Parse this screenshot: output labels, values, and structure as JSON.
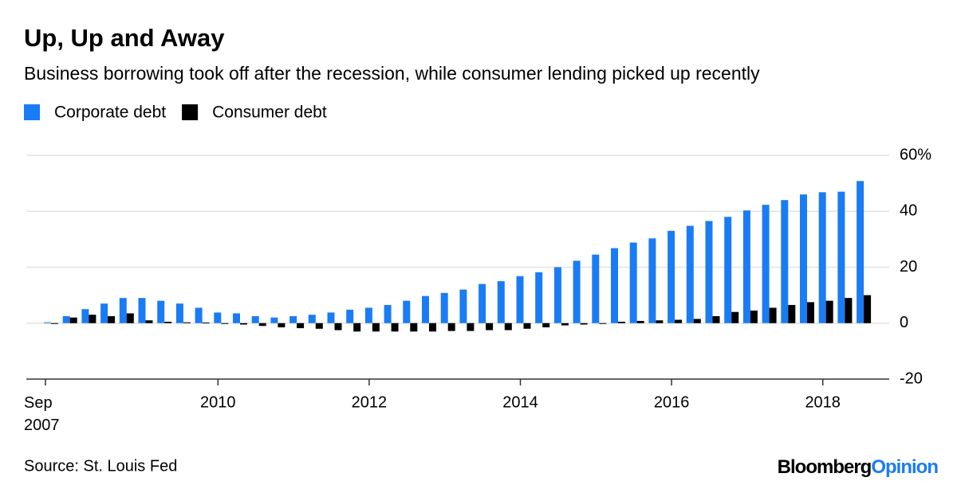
{
  "chart_data": {
    "type": "bar",
    "title": "Up, Up and Away",
    "subtitle": "Business borrowing took off after the recession, while consumer lending picked up recently",
    "categories": [
      "Sep 2007",
      null,
      null,
      null,
      null,
      null,
      null,
      null,
      null,
      "2010",
      null,
      null,
      null,
      null,
      null,
      null,
      null,
      "2012",
      null,
      null,
      null,
      null,
      null,
      null,
      null,
      "2014",
      null,
      null,
      null,
      null,
      null,
      null,
      null,
      "2016",
      null,
      null,
      null,
      null,
      null,
      null,
      null,
      "2018",
      null,
      null
    ],
    "series": [
      {
        "name": "Corporate debt",
        "color": "#1a7cf5",
        "values": [
          0.3,
          2.5,
          5,
          7,
          9,
          9,
          8,
          7,
          5.5,
          3.8,
          3.5,
          2.5,
          2,
          2.5,
          3,
          3.8,
          4.8,
          5.5,
          6.5,
          8,
          9.7,
          10.8,
          12,
          14,
          15,
          16.8,
          18.2,
          20,
          22.3,
          24.5,
          26.8,
          28.8,
          30.3,
          33,
          34.8,
          36.5,
          38,
          40.3,
          42.3,
          44,
          46,
          46.8,
          47,
          50.8
        ]
      },
      {
        "name": "Consumer debt",
        "color": "#000000",
        "values": [
          0,
          2,
          3,
          2.5,
          3.5,
          1,
          0.5,
          0.3,
          0.2,
          0,
          -0.5,
          -1,
          -1.5,
          -1.8,
          -2,
          -2.5,
          -3,
          -3,
          -3,
          -3,
          -3,
          -2.8,
          -2.8,
          -2.5,
          -2.5,
          -2,
          -1.5,
          -0.8,
          -0.5,
          0,
          0.5,
          0.8,
          1,
          1.2,
          1.5,
          2.5,
          4,
          4.5,
          5.5,
          6.5,
          7.5,
          8,
          9,
          10
        ]
      }
    ],
    "ylim": [
      -20,
      60
    ],
    "yticks": [
      {
        "value": 60,
        "label": "60%"
      },
      40,
      20,
      0,
      -20
    ],
    "grid": true,
    "legend": "top-left",
    "source": "Source: St. Louis Fed",
    "logo": [
      "Bloomberg",
      "Opinion"
    ]
  }
}
